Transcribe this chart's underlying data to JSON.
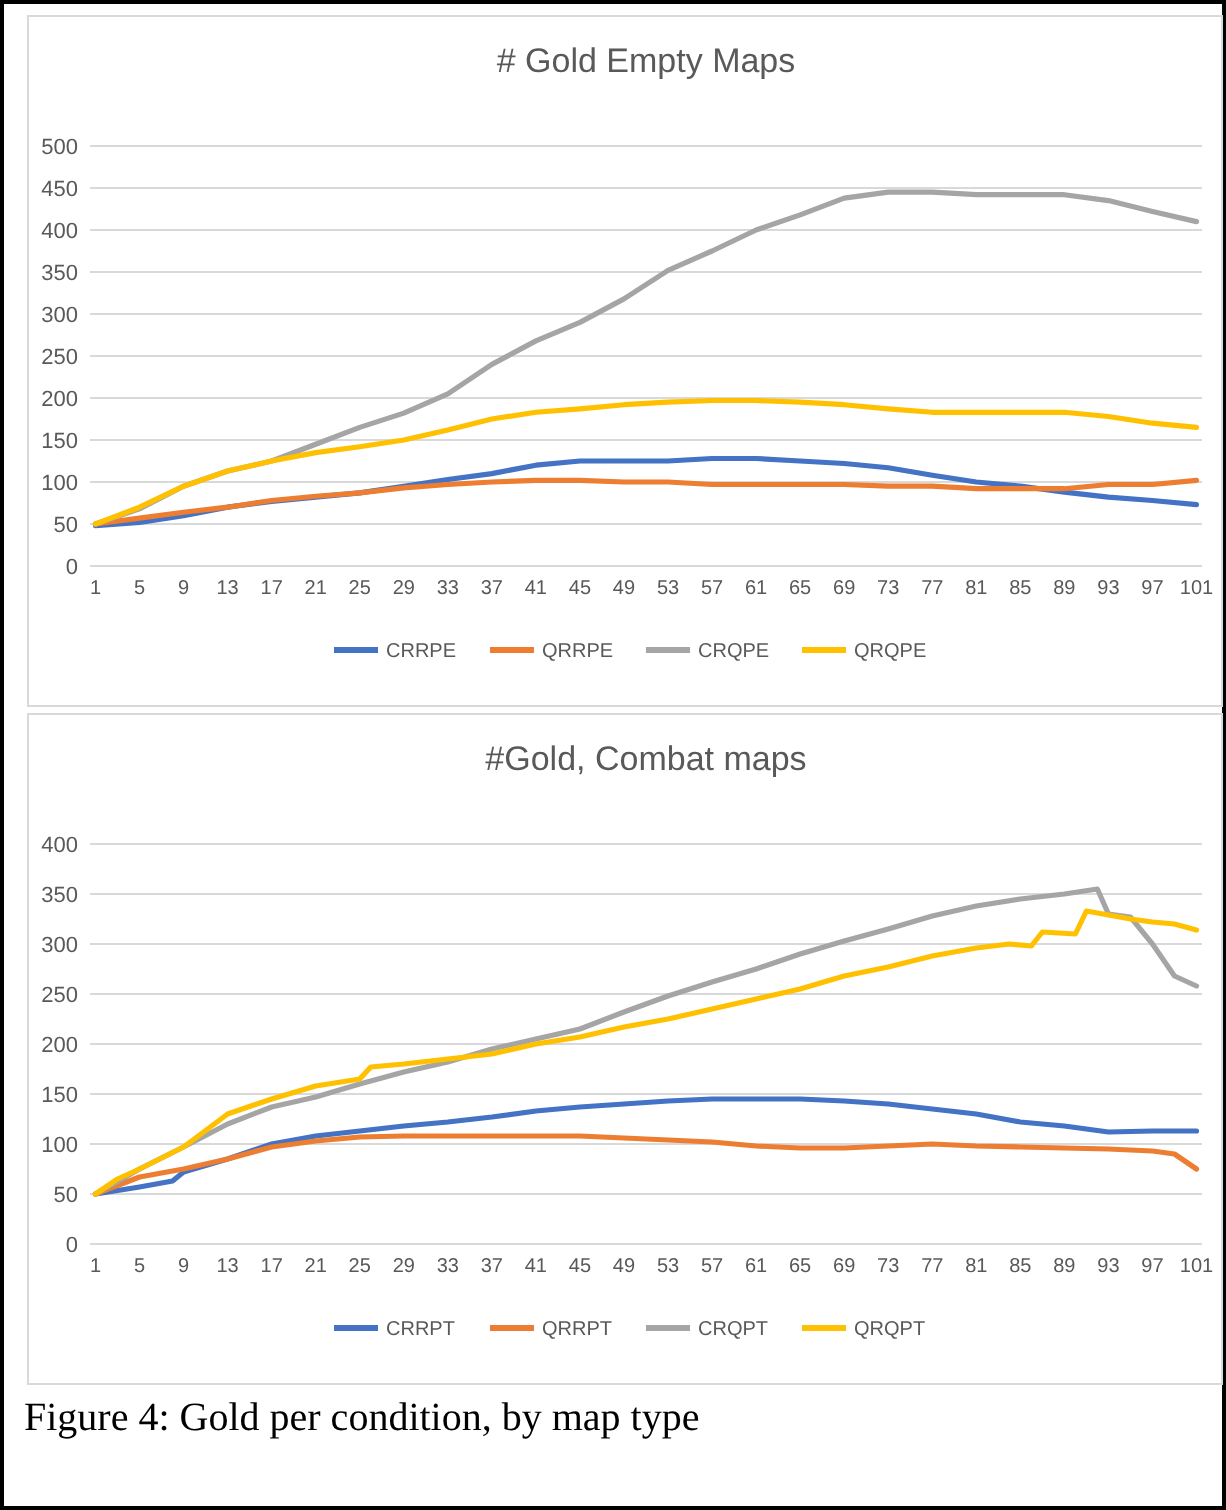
{
  "chart_data": [
    {
      "type": "line",
      "title": "# Gold Empty Maps",
      "xlim": [
        0.5,
        101.5
      ],
      "xticks": [
        1,
        5,
        9,
        13,
        17,
        21,
        25,
        29,
        33,
        37,
        41,
        45,
        49,
        53,
        57,
        61,
        65,
        69,
        73,
        77,
        81,
        85,
        89,
        93,
        97,
        101
      ],
      "ylim": [
        0,
        500
      ],
      "yticks": [
        0,
        50,
        100,
        150,
        200,
        250,
        300,
        350,
        400,
        450,
        500
      ],
      "grid": "y",
      "legend": "bottom",
      "x": [
        1,
        5,
        9,
        13,
        17,
        21,
        25,
        29,
        33,
        37,
        41,
        45,
        49,
        53,
        57,
        61,
        65,
        69,
        73,
        77,
        81,
        85,
        89,
        93,
        97,
        101
      ],
      "series": [
        {
          "name": "CRRPE",
          "color": "#4472c4",
          "values": [
            48,
            52,
            60,
            70,
            77,
            82,
            87,
            95,
            103,
            110,
            120,
            125,
            125,
            125,
            128,
            128,
            125,
            122,
            117,
            108,
            100,
            95,
            88,
            82,
            78,
            73
          ]
        },
        {
          "name": "QRRPE",
          "color": "#ed7d31",
          "values": [
            50,
            57,
            64,
            70,
            78,
            83,
            87,
            93,
            97,
            100,
            102,
            102,
            100,
            100,
            97,
            97,
            97,
            97,
            95,
            95,
            92,
            92,
            92,
            97,
            97,
            102
          ]
        },
        {
          "name": "CRQPE",
          "color": "#a5a5a5",
          "values": [
            50,
            68,
            95,
            113,
            125,
            145,
            165,
            182,
            205,
            240,
            268,
            290,
            318,
            352,
            375,
            400,
            418,
            438,
            445,
            445,
            442,
            442,
            442,
            435,
            422,
            410
          ]
        },
        {
          "name": "QRQPE",
          "color": "#ffc000",
          "values": [
            50,
            70,
            95,
            113,
            125,
            135,
            142,
            150,
            162,
            175,
            183,
            187,
            192,
            195,
            197,
            197,
            195,
            192,
            187,
            183,
            183,
            183,
            183,
            178,
            170,
            165
          ]
        }
      ]
    },
    {
      "type": "line",
      "title": "#Gold, Combat maps",
      "xlim": [
        0.5,
        101.5
      ],
      "xticks": [
        1,
        5,
        9,
        13,
        17,
        21,
        25,
        29,
        33,
        37,
        41,
        45,
        49,
        53,
        57,
        61,
        65,
        69,
        73,
        77,
        81,
        85,
        89,
        93,
        97,
        101
      ],
      "ylim": [
        0,
        400
      ],
      "yticks": [
        0,
        50,
        100,
        150,
        200,
        250,
        300,
        350,
        400
      ],
      "grid": "y",
      "legend": "bottom",
      "annotations": [
        "Figure 4: Gold per condition, by map type"
      ],
      "series": [
        {
          "name": "CRRPT",
          "color": "#4472c4",
          "x": [
            1,
            5,
            8,
            9,
            13,
            17,
            21,
            25,
            29,
            33,
            37,
            41,
            45,
            49,
            53,
            57,
            61,
            65,
            69,
            73,
            77,
            81,
            85,
            89,
            93,
            97,
            101
          ],
          "values": [
            50,
            57,
            63,
            72,
            85,
            100,
            108,
            113,
            118,
            122,
            127,
            133,
            137,
            140,
            143,
            145,
            145,
            145,
            143,
            140,
            135,
            130,
            122,
            118,
            112,
            113,
            113
          ]
        },
        {
          "name": "QRRPT",
          "color": "#ed7d31",
          "x": [
            1,
            5,
            9,
            13,
            17,
            21,
            25,
            29,
            33,
            37,
            41,
            45,
            49,
            53,
            57,
            61,
            65,
            69,
            73,
            77,
            81,
            85,
            89,
            93,
            97,
            99,
            101
          ],
          "values": [
            50,
            67,
            75,
            85,
            97,
            103,
            107,
            108,
            108,
            108,
            108,
            108,
            106,
            104,
            102,
            98,
            96,
            96,
            98,
            100,
            98,
            97,
            96,
            95,
            93,
            90,
            75
          ]
        },
        {
          "name": "CRQPT",
          "color": "#a5a5a5",
          "x": [
            1,
            5,
            9,
            13,
            17,
            21,
            25,
            29,
            33,
            37,
            41,
            45,
            49,
            53,
            57,
            61,
            65,
            69,
            73,
            77,
            81,
            85,
            89,
            92,
            93,
            95,
            97,
            99,
            101
          ],
          "values": [
            50,
            75,
            97,
            120,
            137,
            147,
            160,
            172,
            182,
            195,
            205,
            215,
            232,
            248,
            262,
            275,
            290,
            303,
            315,
            328,
            338,
            345,
            350,
            355,
            330,
            327,
            300,
            268,
            258
          ]
        },
        {
          "name": "QRQPT",
          "color": "#ffc000",
          "x": [
            1,
            3,
            5,
            9,
            13,
            17,
            21,
            25,
            26,
            29,
            33,
            37,
            41,
            45,
            49,
            53,
            57,
            61,
            65,
            69,
            73,
            77,
            81,
            84,
            86,
            87,
            90,
            91,
            95,
            97,
            99,
            101
          ],
          "values": [
            50,
            65,
            75,
            97,
            130,
            145,
            158,
            165,
            177,
            180,
            185,
            190,
            200,
            207,
            217,
            225,
            235,
            245,
            255,
            268,
            277,
            288,
            296,
            300,
            298,
            312,
            310,
            333,
            325,
            322,
            320,
            314
          ]
        }
      ]
    }
  ]
}
